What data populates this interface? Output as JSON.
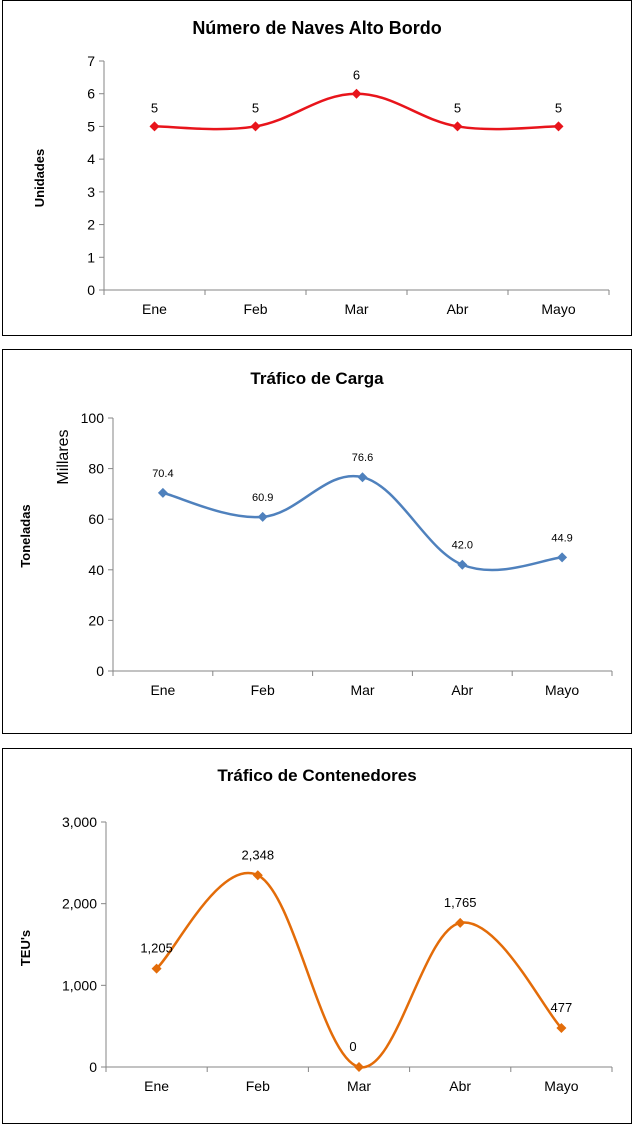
{
  "chart_data": [
    {
      "type": "line",
      "title": "Número de Naves Alto Bordo",
      "xlabel": "",
      "ylabel": "Unidades",
      "categories": [
        "Ene",
        "Feb",
        "Mar",
        "Abr",
        "Mayo"
      ],
      "values": [
        5,
        5,
        6,
        5,
        5
      ],
      "data_labels": [
        "5",
        "5",
        "6",
        "5",
        "5"
      ],
      "ylim": [
        0,
        7
      ],
      "yticks": [
        "0",
        "1",
        "2",
        "3",
        "4",
        "5",
        "6",
        "7"
      ],
      "smooth": true,
      "marker": "diamond",
      "color": "#e8141b",
      "grid": false,
      "legend": "none"
    },
    {
      "type": "line",
      "title": "Tráfico de Carga",
      "xlabel": "",
      "ylabel": "Toneladas",
      "units_label": "Millares",
      "categories": [
        "Ene",
        "Feb",
        "Mar",
        "Abr",
        "Mayo"
      ],
      "values": [
        70.4,
        60.9,
        76.6,
        42.0,
        44.9
      ],
      "data_labels": [
        "70.4",
        "60.9",
        "76.6",
        "42.0",
        "44.9"
      ],
      "ylim": [
        0,
        100
      ],
      "yticks": [
        "0",
        "20",
        "40",
        "60",
        "80",
        "100"
      ],
      "smooth": true,
      "marker": "diamond",
      "color": "#4f81bd",
      "grid": false,
      "legend": "none"
    },
    {
      "type": "line",
      "title": "Tráfico de Contenedores",
      "xlabel": "",
      "ylabel": "TEU's",
      "categories": [
        "Ene",
        "Feb",
        "Mar",
        "Abr",
        "Mayo"
      ],
      "values": [
        1205,
        2348,
        0,
        1765,
        477
      ],
      "data_labels": [
        "1,205",
        "2,348",
        "0",
        "1,765",
        "477"
      ],
      "ylim": [
        0,
        3000
      ],
      "yticks": [
        "0",
        "1,000",
        "2,000",
        "3,000"
      ],
      "smooth": true,
      "marker": "diamond",
      "color": "#e36c09",
      "grid": false,
      "legend": "none"
    }
  ]
}
